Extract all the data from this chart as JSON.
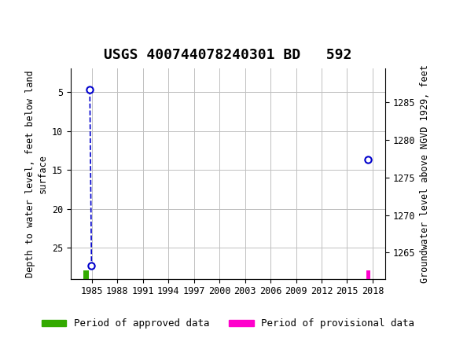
{
  "title": "USGS 400744078240301 BD   592",
  "ylabel_left": "Depth to water level, feet below land\nsurface",
  "ylabel_right": "Groundwater level above NGVD 1929, feet",
  "header_color": "#1a7a3c",
  "background_color": "#ffffff",
  "data_points_connected": [
    {
      "year": 1984.75,
      "depth": 4.7
    },
    {
      "year": 1984.95,
      "depth": 27.3
    }
  ],
  "data_point_isolated": {
    "year": 2017.5,
    "depth": 13.7
  },
  "ylim_left": [
    29.0,
    2.0
  ],
  "ylim_right": [
    1261.5,
    1289.5
  ],
  "xlim": [
    1982.5,
    2019.5
  ],
  "xticks": [
    1985,
    1988,
    1991,
    1994,
    1997,
    2000,
    2003,
    2006,
    2009,
    2012,
    2015,
    2018
  ],
  "yticks_left": [
    5,
    10,
    15,
    20,
    25
  ],
  "yticks_right": [
    1265,
    1270,
    1275,
    1280,
    1285
  ],
  "grid_color": "#c0c0c0",
  "point_color": "#0000cc",
  "line_color": "#0000cc",
  "approved_bar_x": 1984.0,
  "approved_bar_width": 0.6,
  "approved_bar_color": "#33aa00",
  "provisional_bar_x": 2017.3,
  "provisional_bar_width": 0.4,
  "provisional_bar_color": "#ff00cc",
  "legend_approved": "Period of approved data",
  "legend_provisional": "Period of provisional data",
  "title_fontsize": 13,
  "axis_label_fontsize": 8.5,
  "tick_fontsize": 8.5,
  "legend_fontsize": 9
}
